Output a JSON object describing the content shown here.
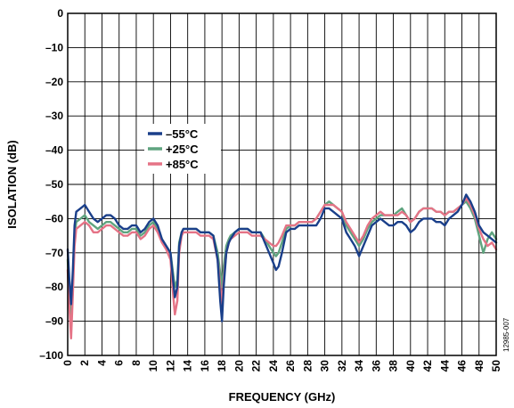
{
  "chart_data": {
    "type": "line",
    "xlabel": "FREQUENCY (GHz)",
    "ylabel": "ISOLATION (dB)",
    "xlim": [
      0,
      50
    ],
    "ylim": [
      -100,
      0
    ],
    "x_ticks": [
      "0",
      "2",
      "4",
      "6",
      "8",
      "10",
      "12",
      "14",
      "16",
      "18",
      "20",
      "22",
      "24",
      "26",
      "28",
      "30",
      "32",
      "34",
      "36",
      "38",
      "40",
      "42",
      "44",
      "46",
      "48",
      "50"
    ],
    "y_ticks": [
      "0",
      "–10",
      "–20",
      "–30",
      "–40",
      "–50",
      "–60",
      "–70",
      "–80",
      "–90",
      "–100"
    ],
    "grid": true,
    "legend_position": "upper-left",
    "figure_id": "12985-007",
    "series": [
      {
        "name": "–55°C",
        "color": "#1a3f8a",
        "x": [
          0,
          0.2,
          0.4,
          0.6,
          0.8,
          1,
          1.5,
          2,
          2.5,
          3,
          3.5,
          4,
          4.5,
          5,
          5.5,
          6,
          6.5,
          7,
          7.5,
          8,
          8.5,
          9,
          9.5,
          10,
          10.5,
          11,
          11.5,
          12,
          12.3,
          12.5,
          12.8,
          13,
          13.3,
          13.5,
          14,
          14.5,
          15,
          15.5,
          16,
          16.5,
          17,
          17.5,
          17.8,
          18,
          18.2,
          18.5,
          18.8,
          19,
          19.5,
          20,
          20.5,
          21,
          21.5,
          22,
          22.5,
          23,
          23.5,
          24,
          24.3,
          24.6,
          25,
          25.5,
          26,
          26.5,
          27,
          27.5,
          28,
          28.5,
          29,
          29.5,
          30,
          30.5,
          31,
          31.5,
          32,
          32.5,
          33,
          33.5,
          34,
          34.5,
          35,
          35.5,
          36,
          36.5,
          37,
          37.5,
          38,
          38.5,
          39,
          39.5,
          40,
          40.5,
          41,
          41.5,
          42,
          42.5,
          43,
          43.5,
          44,
          44.5,
          45,
          45.5,
          46,
          46.5,
          47,
          47.5,
          48,
          48.5,
          49,
          49.5,
          50
        ],
        "values": [
          -69,
          -78,
          -85,
          -75,
          -62,
          -58,
          -57,
          -56,
          -58,
          -60,
          -61,
          -60,
          -59,
          -59,
          -60,
          -62,
          -63,
          -63,
          -62,
          -62,
          -64,
          -63,
          -61,
          -60,
          -62,
          -66,
          -68,
          -70,
          -78,
          -83,
          -80,
          -68,
          -64,
          -63,
          -63,
          -63,
          -63,
          -64,
          -64,
          -64,
          -65,
          -72,
          -84,
          -90,
          -80,
          -70,
          -67,
          -66,
          -64,
          -63,
          -63,
          -63,
          -64,
          -64,
          -64,
          -67,
          -70,
          -73,
          -75,
          -74,
          -70,
          -64,
          -63,
          -63,
          -62,
          -62,
          -62,
          -62,
          -62,
          -60,
          -57,
          -57,
          -58,
          -59,
          -60,
          -64,
          -66,
          -68,
          -71,
          -68,
          -65,
          -62,
          -61,
          -60,
          -61,
          -62,
          -62,
          -61,
          -61,
          -62,
          -64,
          -63,
          -61,
          -60,
          -60,
          -60,
          -61,
          -61,
          -62,
          -60,
          -59,
          -58,
          -56,
          -53,
          -55,
          -58,
          -62,
          -64,
          -65,
          -66,
          -67
        ]
      },
      {
        "name": "+25°C",
        "color": "#5fa47f",
        "x": [
          0,
          0.2,
          0.4,
          0.6,
          0.8,
          1,
          1.5,
          2,
          2.5,
          3,
          3.5,
          4,
          4.5,
          5,
          5.5,
          6,
          6.5,
          7,
          7.5,
          8,
          8.5,
          9,
          9.5,
          10,
          10.5,
          11,
          11.5,
          12,
          12.3,
          12.5,
          12.8,
          13,
          13.3,
          13.5,
          14,
          14.5,
          15,
          15.5,
          16,
          16.5,
          17,
          17.5,
          17.8,
          18,
          18.2,
          18.5,
          18.8,
          19,
          19.5,
          20,
          20.5,
          21,
          21.5,
          22,
          22.5,
          23,
          23.5,
          24,
          24.3,
          24.6,
          25,
          25.5,
          26,
          26.5,
          27,
          27.5,
          28,
          28.5,
          29,
          29.5,
          30,
          30.5,
          31,
          31.5,
          32,
          32.5,
          33,
          33.5,
          34,
          34.5,
          35,
          35.5,
          36,
          36.5,
          37,
          37.5,
          38,
          38.5,
          39,
          39.5,
          40,
          40.5,
          41,
          41.5,
          42,
          42.5,
          43,
          43.5,
          44,
          44.5,
          45,
          45.5,
          46,
          46.5,
          47,
          47.5,
          48,
          48.5,
          49,
          49.5,
          50
        ],
        "values": [
          -72,
          -82,
          -90,
          -78,
          -65,
          -61,
          -60,
          -59,
          -61,
          -62,
          -63,
          -62,
          -61,
          -61,
          -62,
          -63,
          -64,
          -64,
          -63,
          -63,
          -65,
          -64,
          -62,
          -61,
          -63,
          -66,
          -68,
          -70,
          -76,
          -80,
          -78,
          -67,
          -64,
          -63,
          -63,
          -63,
          -63,
          -64,
          -64,
          -64,
          -65,
          -70,
          -76,
          -80,
          -74,
          -68,
          -66,
          -65,
          -64,
          -63,
          -63,
          -63,
          -64,
          -64,
          -64,
          -66,
          -68,
          -70,
          -71,
          -70,
          -67,
          -63,
          -62,
          -62,
          -61,
          -61,
          -61,
          -61,
          -60,
          -58,
          -56,
          -55,
          -56,
          -57,
          -58,
          -62,
          -64,
          -66,
          -68,
          -66,
          -63,
          -61,
          -60,
          -59,
          -59,
          -59,
          -59,
          -58,
          -57,
          -59,
          -61,
          -60,
          -58,
          -57,
          -57,
          -57,
          -58,
          -58,
          -59,
          -58,
          -58,
          -57,
          -56,
          -55,
          -57,
          -60,
          -65,
          -70,
          -66,
          -64,
          -66
        ]
      },
      {
        "name": "+85°C",
        "color": "#e57386",
        "x": [
          0,
          0.2,
          0.4,
          0.6,
          0.8,
          1,
          1.5,
          2,
          2.5,
          3,
          3.5,
          4,
          4.5,
          5,
          5.5,
          6,
          6.5,
          7,
          7.5,
          8,
          8.5,
          9,
          9.5,
          10,
          10.5,
          11,
          11.5,
          12,
          12.3,
          12.5,
          12.8,
          13,
          13.3,
          13.5,
          14,
          14.5,
          15,
          15.5,
          16,
          16.5,
          17,
          17.5,
          17.8,
          18,
          18.2,
          18.5,
          18.8,
          19,
          19.5,
          20,
          20.5,
          21,
          21.5,
          22,
          22.5,
          23,
          23.5,
          24,
          24.3,
          24.6,
          25,
          25.5,
          26,
          26.5,
          27,
          27.5,
          28,
          28.5,
          29,
          29.5,
          30,
          30.5,
          31,
          31.5,
          32,
          32.5,
          33,
          33.5,
          34,
          34.5,
          35,
          35.5,
          36,
          36.5,
          37,
          37.5,
          38,
          38.5,
          39,
          39.5,
          40,
          40.5,
          41,
          41.5,
          42,
          42.5,
          43,
          43.5,
          44,
          44.5,
          45,
          45.5,
          46,
          46.5,
          47,
          47.5,
          48,
          48.5,
          49,
          49.5,
          50
        ],
        "values": [
          -75,
          -86,
          -95,
          -82,
          -68,
          -63,
          -62,
          -61,
          -62,
          -64,
          -64,
          -63,
          -62,
          -62,
          -63,
          -64,
          -65,
          -65,
          -64,
          -64,
          -66,
          -65,
          -63,
          -62,
          -64,
          -67,
          -69,
          -72,
          -82,
          -88,
          -84,
          -70,
          -65,
          -64,
          -64,
          -64,
          -64,
          -65,
          -65,
          -65,
          -66,
          -72,
          -80,
          -85,
          -78,
          -70,
          -67,
          -66,
          -65,
          -64,
          -64,
          -64,
          -65,
          -65,
          -65,
          -66,
          -67,
          -68,
          -68,
          -67,
          -65,
          -62,
          -62,
          -62,
          -61,
          -61,
          -61,
          -61,
          -60,
          -58,
          -56,
          -56,
          -56,
          -57,
          -58,
          -61,
          -63,
          -65,
          -67,
          -65,
          -62,
          -60,
          -59,
          -58,
          -59,
          -59,
          -59,
          -59,
          -58,
          -59,
          -61,
          -60,
          -58,
          -57,
          -57,
          -57,
          -58,
          -58,
          -59,
          -58,
          -58,
          -57,
          -56,
          -54,
          -56,
          -59,
          -63,
          -66,
          -68,
          -67,
          -69
        ]
      }
    ]
  }
}
